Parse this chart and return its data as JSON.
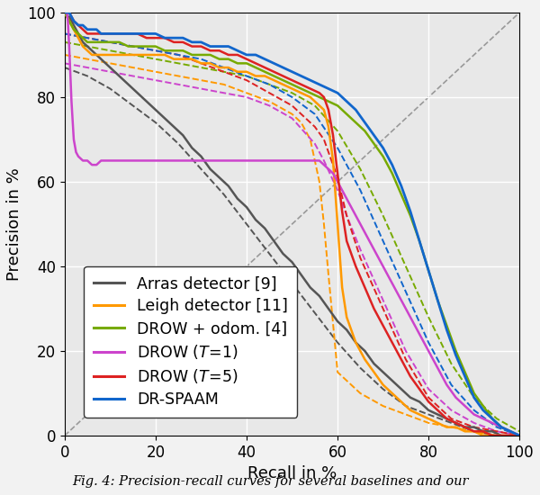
{
  "xlabel": "Recall in %",
  "ylabel": "Precision in %",
  "xlim": [
    0,
    100
  ],
  "ylim": [
    0,
    100
  ],
  "xticks": [
    0,
    20,
    40,
    60,
    80,
    100
  ],
  "yticks": [
    0,
    20,
    40,
    60,
    80,
    100
  ],
  "background_color": "#e8e8e8",
  "grid_color": "#ffffff",
  "caption": "Fig. 4: Precision-recall curves for several baselines and our",
  "curves": {
    "arras": {
      "label": "Arras detector [9]",
      "color": "#555555",
      "linestyle": "solid",
      "linewidth": 1.8,
      "x": [
        0,
        0.5,
        1,
        1.5,
        2,
        3,
        4,
        5,
        6,
        7,
        8,
        9,
        10,
        12,
        14,
        16,
        18,
        20,
        22,
        24,
        26,
        28,
        30,
        32,
        34,
        36,
        38,
        40,
        42,
        44,
        46,
        48,
        50,
        52,
        54,
        56,
        58,
        60,
        62,
        64,
        66,
        68,
        70,
        72,
        74,
        76,
        78,
        80,
        82,
        84,
        86,
        88,
        90,
        92,
        94,
        96,
        98,
        100
      ],
      "y": [
        100,
        99,
        99,
        98,
        97,
        95,
        93,
        92,
        91,
        90,
        89,
        88,
        87,
        85,
        83,
        81,
        79,
        77,
        75,
        73,
        71,
        68,
        66,
        63,
        61,
        59,
        56,
        54,
        51,
        49,
        46,
        43,
        41,
        38,
        35,
        33,
        30,
        27,
        25,
        22,
        20,
        17,
        15,
        13,
        11,
        9,
        8,
        6,
        5,
        4,
        3,
        2,
        2,
        1,
        1,
        0,
        0,
        0
      ]
    },
    "arras_dashed": {
      "color": "#555555",
      "linestyle": "dashed",
      "linewidth": 1.4,
      "x": [
        0,
        5,
        10,
        15,
        20,
        25,
        30,
        35,
        40,
        45,
        50,
        55,
        60,
        65,
        70,
        75,
        80,
        85,
        90,
        95,
        100
      ],
      "y": [
        87,
        85,
        82,
        78,
        74,
        69,
        63,
        57,
        50,
        43,
        36,
        29,
        22,
        16,
        11,
        7,
        5,
        3,
        1,
        0,
        0
      ]
    },
    "leigh": {
      "label": "Leigh detector [11]",
      "color": "#ff9900",
      "linestyle": "solid",
      "linewidth": 1.8,
      "x": [
        0,
        0.5,
        1,
        1.5,
        2,
        3,
        4,
        5,
        6,
        7,
        8,
        9,
        10,
        12,
        14,
        16,
        18,
        20,
        22,
        24,
        26,
        28,
        30,
        32,
        34,
        36,
        38,
        40,
        42,
        44,
        46,
        48,
        50,
        52,
        54,
        56,
        57,
        58,
        59,
        60,
        61,
        62,
        64,
        66,
        68,
        70,
        72,
        74,
        76,
        78,
        80,
        82,
        84,
        86,
        88,
        90,
        92,
        94,
        96,
        98,
        100
      ],
      "y": [
        100,
        99,
        98,
        97,
        96,
        94,
        92,
        91,
        90,
        90,
        90,
        90,
        90,
        90,
        90,
        90,
        90,
        90,
        90,
        89,
        89,
        89,
        88,
        88,
        87,
        87,
        86,
        86,
        85,
        85,
        84,
        83,
        82,
        81,
        80,
        78,
        77,
        73,
        65,
        50,
        35,
        28,
        22,
        18,
        15,
        12,
        10,
        8,
        6,
        5,
        4,
        3,
        2,
        2,
        1,
        1,
        0,
        0,
        0,
        0,
        0
      ]
    },
    "leigh_dashed": {
      "color": "#ff9900",
      "linestyle": "dashed",
      "linewidth": 1.4,
      "x": [
        0,
        5,
        10,
        15,
        20,
        25,
        30,
        35,
        40,
        45,
        50,
        52,
        54,
        56,
        57,
        58,
        60,
        65,
        70,
        75,
        80,
        85,
        90,
        95,
        100
      ],
      "y": [
        90,
        89,
        88,
        87,
        86,
        85,
        84,
        83,
        81,
        79,
        76,
        74,
        70,
        60,
        50,
        38,
        15,
        10,
        7,
        5,
        3,
        2,
        1,
        0,
        0
      ]
    },
    "drow_odom": {
      "label": "DROW + odom. [4]",
      "color": "#77aa00",
      "linestyle": "solid",
      "linewidth": 1.8,
      "x": [
        0,
        0.5,
        1,
        1.5,
        2,
        3,
        4,
        5,
        6,
        7,
        8,
        9,
        10,
        12,
        14,
        16,
        18,
        20,
        22,
        24,
        26,
        28,
        30,
        32,
        34,
        36,
        38,
        40,
        42,
        44,
        46,
        48,
        50,
        52,
        54,
        56,
        58,
        60,
        62,
        64,
        66,
        68,
        70,
        72,
        74,
        76,
        78,
        80,
        82,
        84,
        86,
        88,
        90,
        92,
        94,
        96,
        98,
        100
      ],
      "y": [
        100,
        99,
        98,
        97,
        96,
        95,
        94,
        93,
        93,
        93,
        93,
        93,
        93,
        93,
        92,
        92,
        92,
        92,
        91,
        91,
        91,
        90,
        90,
        90,
        89,
        89,
        88,
        88,
        87,
        86,
        85,
        84,
        83,
        82,
        81,
        80,
        79,
        78,
        76,
        74,
        72,
        69,
        66,
        62,
        57,
        52,
        46,
        39,
        32,
        26,
        20,
        15,
        10,
        7,
        4,
        2,
        1,
        0
      ]
    },
    "drow_odom_dashed": {
      "color": "#77aa00",
      "linestyle": "dashed",
      "linewidth": 1.4,
      "x": [
        0,
        5,
        10,
        15,
        20,
        25,
        30,
        35,
        40,
        45,
        50,
        55,
        60,
        65,
        70,
        75,
        80,
        85,
        90,
        95,
        100
      ],
      "y": [
        93,
        92,
        91,
        90,
        89,
        88,
        87,
        86,
        85,
        83,
        81,
        78,
        72,
        63,
        52,
        40,
        28,
        17,
        9,
        4,
        1
      ]
    },
    "drow_t1": {
      "label": "DROW ($T =1$)",
      "color": "#cc44cc",
      "linestyle": "solid",
      "linewidth": 1.8,
      "x": [
        0,
        0.3,
        0.5,
        0.7,
        1,
        1.5,
        2,
        2.5,
        3,
        4,
        5,
        6,
        7,
        8,
        9,
        10,
        12,
        14,
        16,
        18,
        20,
        22,
        24,
        26,
        28,
        30,
        32,
        34,
        36,
        38,
        40,
        42,
        44,
        46,
        48,
        50,
        52,
        54,
        56,
        57,
        58,
        59,
        60,
        62,
        64,
        66,
        68,
        70,
        72,
        74,
        76,
        78,
        80,
        82,
        84,
        86,
        88,
        90,
        92,
        94,
        96,
        98,
        100
      ],
      "y": [
        100,
        100,
        100,
        98,
        92,
        79,
        70,
        67,
        66,
        65,
        65,
        64,
        64,
        65,
        65,
        65,
        65,
        65,
        65,
        65,
        65,
        65,
        65,
        65,
        65,
        65,
        65,
        65,
        65,
        65,
        65,
        65,
        65,
        65,
        65,
        65,
        65,
        65,
        65,
        64,
        63,
        62,
        60,
        56,
        52,
        48,
        44,
        40,
        36,
        32,
        28,
        24,
        20,
        16,
        12,
        9,
        7,
        5,
        4,
        3,
        2,
        1,
        0
      ]
    },
    "drow_t1_dashed": {
      "color": "#cc44cc",
      "linestyle": "dashed",
      "linewidth": 1.4,
      "x": [
        0,
        5,
        10,
        15,
        20,
        25,
        30,
        35,
        40,
        45,
        50,
        55,
        57,
        60,
        62,
        65,
        70,
        75,
        80,
        85,
        90,
        95,
        100
      ],
      "y": [
        88,
        87,
        86,
        85,
        84,
        83,
        82,
        81,
        80,
        78,
        75,
        69,
        65,
        58,
        52,
        44,
        32,
        20,
        11,
        6,
        3,
        1,
        0
      ]
    },
    "drow_t5": {
      "label": "DROW ($T =5$)",
      "color": "#dd2222",
      "linestyle": "solid",
      "linewidth": 1.8,
      "x": [
        0,
        0.5,
        1,
        1.5,
        2,
        3,
        4,
        5,
        6,
        7,
        8,
        9,
        10,
        12,
        14,
        16,
        18,
        20,
        22,
        24,
        26,
        28,
        30,
        32,
        34,
        36,
        38,
        40,
        42,
        44,
        46,
        48,
        50,
        52,
        54,
        56,
        57,
        58,
        59,
        60,
        61,
        62,
        64,
        66,
        68,
        70,
        72,
        74,
        76,
        78,
        80,
        82,
        84,
        86,
        88,
        90,
        92,
        94,
        96,
        98,
        100
      ],
      "y": [
        100,
        100,
        100,
        99,
        98,
        97,
        96,
        95,
        95,
        95,
        95,
        95,
        95,
        95,
        95,
        95,
        94,
        94,
        94,
        93,
        93,
        92,
        92,
        91,
        91,
        90,
        90,
        89,
        88,
        87,
        86,
        85,
        84,
        83,
        82,
        81,
        80,
        77,
        71,
        62,
        53,
        46,
        40,
        35,
        30,
        26,
        22,
        18,
        14,
        11,
        8,
        6,
        4,
        3,
        2,
        1,
        1,
        0,
        0,
        0,
        0
      ]
    },
    "drow_t5_dashed": {
      "color": "#dd2222",
      "linestyle": "dashed",
      "linewidth": 1.4,
      "x": [
        0,
        5,
        10,
        15,
        20,
        25,
        30,
        35,
        40,
        45,
        50,
        55,
        57,
        60,
        62,
        65,
        70,
        75,
        80,
        85,
        90,
        95,
        100
      ],
      "y": [
        95,
        94,
        93,
        92,
        91,
        90,
        88,
        86,
        84,
        81,
        78,
        73,
        70,
        61,
        52,
        42,
        30,
        18,
        9,
        4,
        2,
        1,
        0
      ]
    },
    "drspaam": {
      "label": "DR-SPAAM",
      "color": "#1166cc",
      "linestyle": "solid",
      "linewidth": 2.0,
      "x": [
        0,
        0.5,
        1,
        1.5,
        2,
        3,
        4,
        5,
        6,
        7,
        8,
        9,
        10,
        12,
        14,
        16,
        18,
        20,
        22,
        24,
        26,
        28,
        30,
        32,
        34,
        36,
        38,
        40,
        42,
        44,
        46,
        48,
        50,
        52,
        54,
        56,
        58,
        60,
        62,
        64,
        66,
        68,
        70,
        72,
        74,
        76,
        78,
        80,
        82,
        84,
        86,
        88,
        90,
        92,
        94,
        96,
        98,
        100
      ],
      "y": [
        100,
        100,
        100,
        99,
        98,
        97,
        97,
        96,
        96,
        96,
        95,
        95,
        95,
        95,
        95,
        95,
        95,
        95,
        94,
        94,
        94,
        93,
        93,
        92,
        92,
        92,
        91,
        90,
        90,
        89,
        88,
        87,
        86,
        85,
        84,
        83,
        82,
        81,
        79,
        77,
        74,
        71,
        68,
        64,
        59,
        53,
        46,
        39,
        32,
        25,
        19,
        14,
        9,
        6,
        4,
        2,
        1,
        0
      ]
    },
    "drspaam_dashed": {
      "color": "#1166cc",
      "linestyle": "dashed",
      "linewidth": 1.4,
      "x": [
        0,
        5,
        10,
        15,
        20,
        25,
        30,
        35,
        40,
        45,
        50,
        55,
        60,
        65,
        70,
        75,
        80,
        85,
        90,
        95,
        100
      ],
      "y": [
        95,
        94,
        93,
        92,
        91,
        90,
        89,
        87,
        85,
        83,
        80,
        76,
        68,
        58,
        46,
        34,
        22,
        12,
        6,
        2,
        0
      ]
    }
  },
  "diagonal": {
    "color": "#999999",
    "linestyle": "dashed",
    "linewidth": 1.2
  },
  "legend_fontsize": 12.5,
  "axis_fontsize": 13,
  "tick_fontsize": 12
}
